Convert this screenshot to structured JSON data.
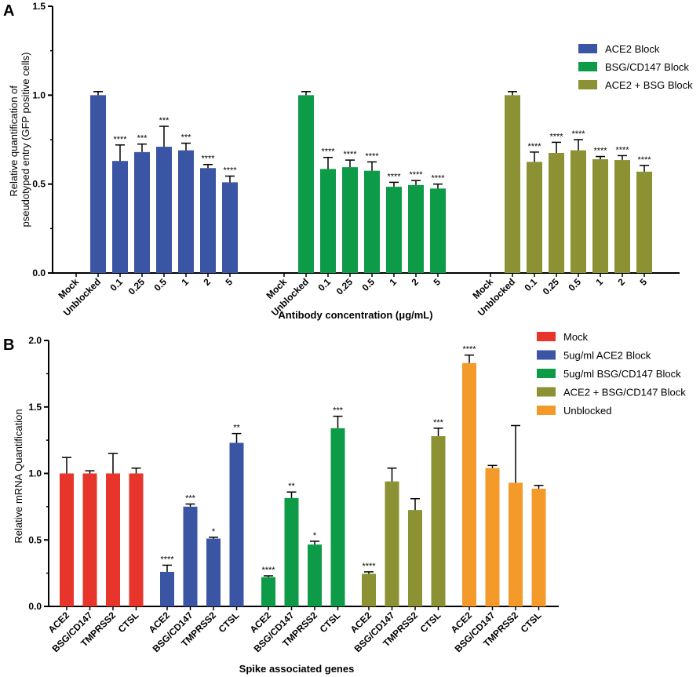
{
  "chart_data": [
    {
      "panel": "A",
      "type": "bar",
      "ylabel_lines": [
        "Relative quantification of",
        "pseudotyped entry (GFP positive cells)"
      ],
      "xlabel": "Antibody concentration (μg/mL)",
      "ylim": [
        0,
        1.5
      ],
      "yticks": [
        "0.0",
        "0.5",
        "1.0",
        "1.5"
      ],
      "groups": [
        {
          "name": "ACE2 Block",
          "color": "#3a55a4",
          "categories": [
            "Mock",
            "Unblocked",
            "0.1",
            "0.25",
            "0.5",
            "1",
            "2",
            "5"
          ],
          "values": [
            0,
            1.0,
            0.63,
            0.68,
            0.71,
            0.69,
            0.59,
            0.51
          ],
          "errors": [
            0,
            0.02,
            0.09,
            0.045,
            0.115,
            0.04,
            0.02,
            0.035
          ],
          "sig": [
            "",
            "",
            "****",
            "***",
            "***",
            "***",
            "****",
            "****"
          ]
        },
        {
          "name": "BSG/CD147 Block",
          "color": "#0d9b48",
          "categories": [
            "Mock",
            "Unblocked",
            "0.1",
            "0.25",
            "0.5",
            "1",
            "2",
            "5"
          ],
          "values": [
            0,
            1.0,
            0.585,
            0.595,
            0.575,
            0.485,
            0.495,
            0.475
          ],
          "errors": [
            0,
            0.02,
            0.065,
            0.04,
            0.05,
            0.025,
            0.025,
            0.025
          ],
          "sig": [
            "",
            "",
            "****",
            "****",
            "****",
            "****",
            "****",
            "****"
          ]
        },
        {
          "name": "ACE2 + BSG Block",
          "color": "#8c9133",
          "categories": [
            "Mock",
            "Unblocked",
            "0.1",
            "0.25",
            "0.5",
            "1",
            "2",
            "5"
          ],
          "values": [
            0,
            1.0,
            0.625,
            0.675,
            0.69,
            0.64,
            0.635,
            0.57
          ],
          "errors": [
            0,
            0.02,
            0.055,
            0.06,
            0.06,
            0.015,
            0.025,
            0.035
          ],
          "sig": [
            "",
            "",
            "****",
            "****",
            "****",
            "****",
            "****",
            "****"
          ]
        }
      ],
      "legend": [
        "ACE2 Block",
        "BSG/CD147 Block",
        "ACE2 + BSG Block"
      ]
    },
    {
      "panel": "B",
      "type": "bar",
      "ylabel": "Relative mRNA Quantification",
      "xlabel": "Spike associated genes",
      "ylim": [
        0,
        2.0
      ],
      "yticks": [
        "0.0",
        "0.5",
        "1.0",
        "1.5",
        "2.0"
      ],
      "groups": [
        {
          "name": "Mock",
          "color": "#e8352b",
          "categories": [
            "ACE2",
            "BSG/CD147",
            "TMPRSS2",
            "CTSL"
          ],
          "values": [
            1.0,
            1.0,
            1.0,
            1.0
          ],
          "errors": [
            0.12,
            0.02,
            0.15,
            0.04
          ],
          "sig": [
            "",
            "",
            "",
            ""
          ]
        },
        {
          "name": "5ug/ml ACE2 Block",
          "color": "#3a55a4",
          "categories": [
            "ACE2",
            "BSG/CD147",
            "TMPRSS2",
            "CTSL"
          ],
          "values": [
            0.26,
            0.75,
            0.51,
            1.23
          ],
          "errors": [
            0.05,
            0.02,
            0.01,
            0.07
          ],
          "sig": [
            "****",
            "***",
            "*",
            "**"
          ]
        },
        {
          "name": "5ug/ml BSG/CD147 Block",
          "color": "#0d9b48",
          "categories": [
            "ACE2",
            "BSG/CD147",
            "TMPRSS2",
            "CTSL"
          ],
          "values": [
            0.22,
            0.815,
            0.465,
            1.34
          ],
          "errors": [
            0.01,
            0.045,
            0.025,
            0.09
          ],
          "sig": [
            "****",
            "**",
            "*",
            "***"
          ]
        },
        {
          "name": "ACE2 + BSG/CD147 Block",
          "color": "#8c9133",
          "categories": [
            "ACE2",
            "BSG/CD147",
            "TMPRSS2",
            "CTSL"
          ],
          "values": [
            0.245,
            0.94,
            0.725,
            1.28
          ],
          "errors": [
            0.015,
            0.1,
            0.085,
            0.06
          ],
          "sig": [
            "****",
            "",
            "",
            "***"
          ]
        },
        {
          "name": "Unblocked",
          "color": "#f39a2b",
          "categories": [
            "ACE2",
            "BSG/CD147",
            "TMPRSS2",
            "CTSL"
          ],
          "values": [
            1.83,
            1.04,
            0.93,
            0.885
          ],
          "errors": [
            0.06,
            0.02,
            0.43,
            0.025
          ],
          "sig": [
            "****",
            "",
            "",
            ""
          ]
        }
      ],
      "legend": [
        "Mock",
        "5ug/ml ACE2 Block",
        "5ug/ml BSG/CD147 Block",
        "ACE2 + BSG/CD147 Block",
        "Unblocked"
      ]
    }
  ]
}
